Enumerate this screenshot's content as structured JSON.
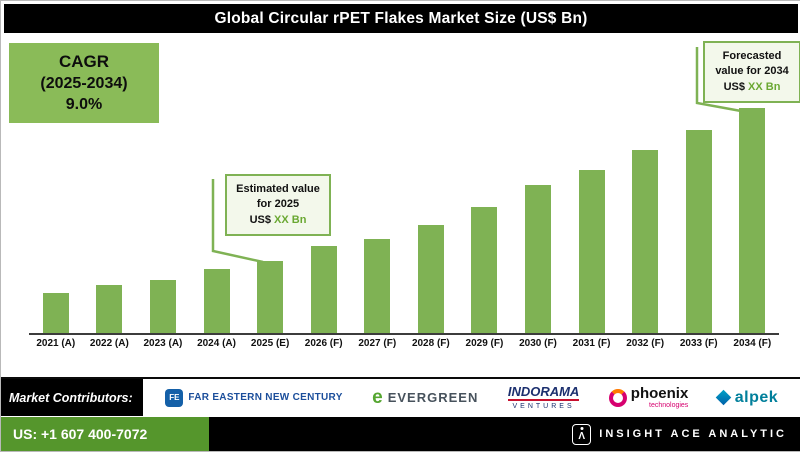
{
  "header": {
    "title": "Global Circular rPET Flakes Market Size (US$ Bn)"
  },
  "cagr_box": {
    "line1": "CAGR",
    "line2": "(2025-2034)",
    "line3": "9.0%"
  },
  "callouts": {
    "estimated": {
      "label": "Estimated value for 2025",
      "currency": "US$",
      "value": "XX Bn"
    },
    "forecasted": {
      "label": "Forecasted value for 2034",
      "currency": "US$",
      "value": "XX Bn"
    }
  },
  "chart_data": {
    "type": "bar",
    "title": "Global Circular rPET Flakes Market Size (US$ Bn)",
    "categories": [
      "2021 (A)",
      "2022 (A)",
      "2023 (A)",
      "2024 (A)",
      "2025 (E)",
      "2026 (F)",
      "2027 (F)",
      "2028 (F)",
      "2029 (F)",
      "2030 (F)",
      "2031 (F)",
      "2032 (F)",
      "2033 (F)",
      "2034 (F)"
    ],
    "values": [
      40,
      48,
      53,
      64,
      72,
      87,
      94,
      108,
      126,
      148,
      163,
      183,
      203,
      225
    ],
    "values_unit": "relative bar height; actual US$ Bn values masked as XX in source",
    "xlabel": "",
    "ylabel": "",
    "grid": false,
    "value_labels_shown": false,
    "bar_color": "#7fb254",
    "legend": "none",
    "cagr_annotation": "9.0% (2025-2034)"
  },
  "contributors": {
    "label": "Market Contributors:",
    "logos": [
      {
        "name": "Far Eastern New Century",
        "icon_glyph": "FE",
        "text": "FAR EASTERN NEW CENTURY"
      },
      {
        "name": "Evergreen",
        "icon_glyph": "e",
        "text": "EVERGREEN"
      },
      {
        "name": "Indorama Ventures",
        "line1": "INDORAMA",
        "line2": "VENTURES"
      },
      {
        "name": "Phoenix Technologies",
        "line1": "phoenix",
        "line2": "technologies"
      },
      {
        "name": "Alpek",
        "text": "alpek"
      }
    ]
  },
  "footer": {
    "phone": "US: +1 607 400-7072",
    "brand": "INSIGHT ACE ANALYTIC",
    "brand_icon_glyph": "Λ"
  },
  "colors": {
    "bar_green": "#7fb254",
    "cagr_box_green": "#8abb58",
    "footer_green": "#55962c",
    "callout_border_green": "#7fb254",
    "callout_value_green": "#6aa832",
    "header_bg": "#000000"
  }
}
